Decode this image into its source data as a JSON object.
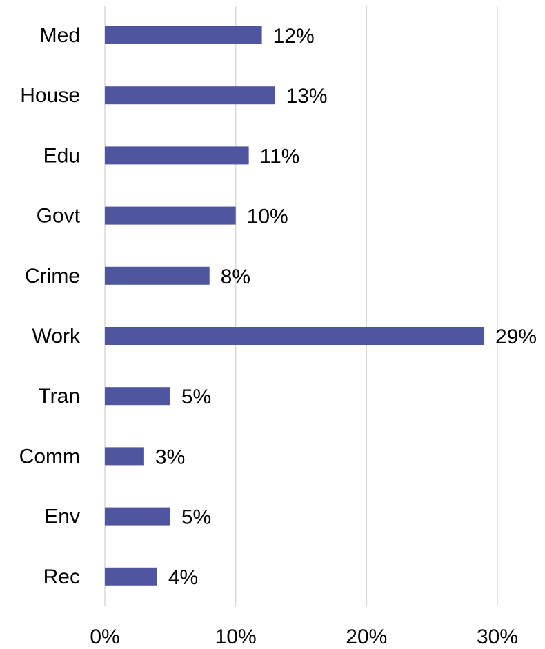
{
  "chart_data": {
    "type": "bar",
    "orientation": "horizontal",
    "categories": [
      "Med",
      "House",
      "Edu",
      "Govt",
      "Crime",
      "Work",
      "Tran",
      "Comm",
      "Env",
      "Rec"
    ],
    "values": [
      12,
      13,
      11,
      10,
      8,
      29,
      5,
      3,
      5,
      4
    ],
    "value_labels": [
      "12%",
      "13%",
      "11%",
      "10%",
      "8%",
      "29%",
      "5%",
      "3%",
      "5%",
      "4%"
    ],
    "x_ticks": [
      0,
      10,
      20,
      30
    ],
    "x_tick_labels": [
      "0%",
      "10%",
      "20%",
      "30%"
    ],
    "xlim": [
      0,
      30
    ],
    "title": "",
    "xlabel": "",
    "ylabel": "",
    "grid": "vertical",
    "legend": "none",
    "bar_color": "#4f559f",
    "grid_color": "#d9d9d9"
  }
}
